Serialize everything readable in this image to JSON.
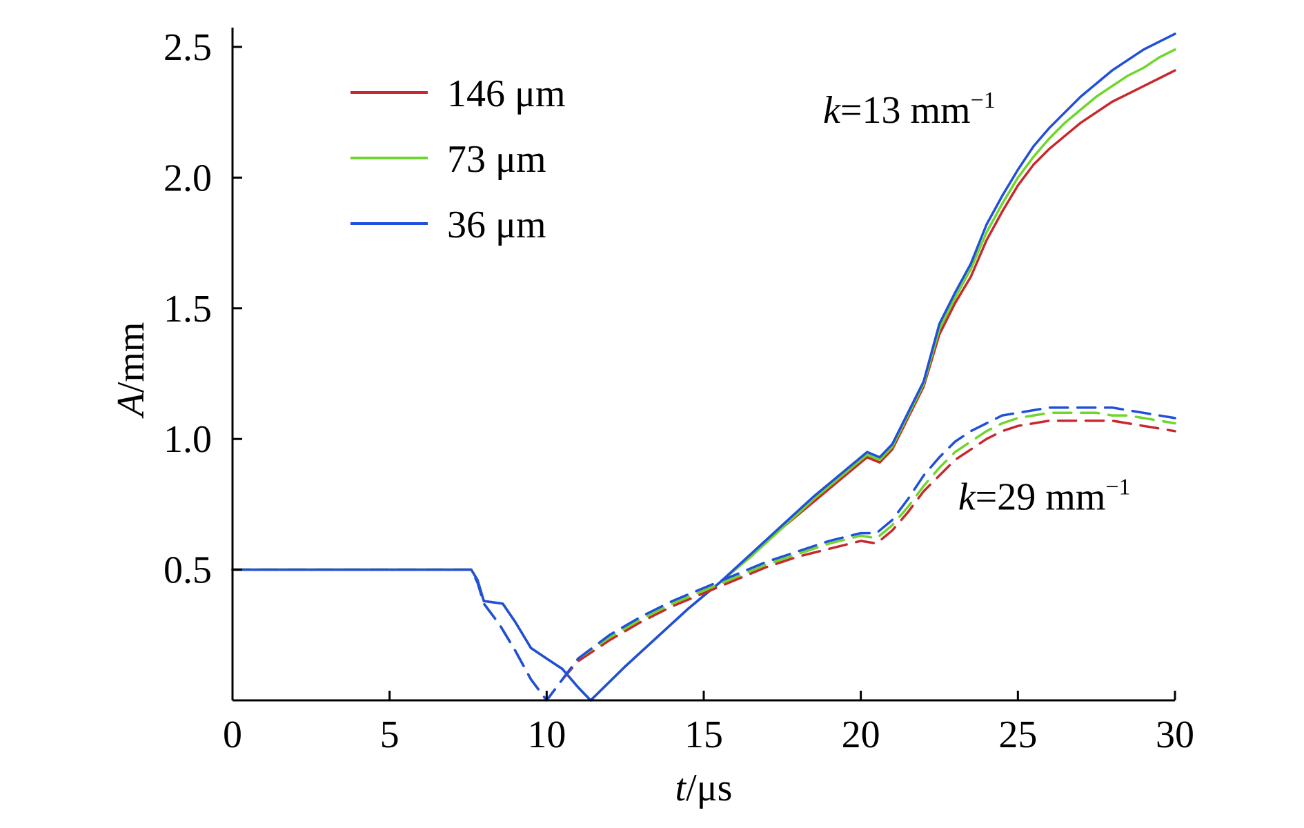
{
  "chart_data": {
    "type": "line",
    "title": "",
    "xlabel_italic": "t",
    "xlabel_rest": "/μs",
    "ylabel_italic": "A",
    "ylabel_rest": "/mm",
    "xlim": [
      0,
      30
    ],
    "ylim": [
      0,
      2.55
    ],
    "xticks": [
      0,
      5,
      10,
      15,
      20,
      25,
      30
    ],
    "xtick_labels": [
      "0",
      "5",
      "10",
      "15",
      "20",
      "25",
      "30"
    ],
    "yticks": [
      0.5,
      1.0,
      1.5,
      2.0,
      2.5
    ],
    "ytick_labels": [
      "0.5",
      "1.0",
      "1.5",
      "2.0",
      "2.5"
    ],
    "grid": false,
    "legend_position": "top-left",
    "legend": [
      {
        "label": "146 μm",
        "color": "#c8282d"
      },
      {
        "label": "73 μm",
        "color": "#6fd62a"
      },
      {
        "label": "36 μm",
        "color": "#1f4fdc"
      }
    ],
    "annotations": [
      {
        "italic": "k",
        "rest": "=13 mm",
        "sup": "−1",
        "at": [
          18.8,
          2.21
        ]
      },
      {
        "italic": "k",
        "rest": "=29 mm",
        "sup": "−1",
        "at": [
          23.1,
          0.73
        ]
      }
    ],
    "series": [
      {
        "name": "146 μm",
        "group": "k=13 mm⁻¹",
        "style": "solid",
        "color": "#c8282d",
        "x": [
          0,
          7.6,
          7.8,
          8.0,
          8.6,
          9.0,
          9.5,
          10.0,
          10.5,
          11.0,
          11.4,
          12.5,
          13.5,
          14.5,
          15.5,
          16.5,
          17.5,
          18.5,
          19.5,
          20.2,
          20.6,
          21.0,
          21.5,
          22.0,
          22.5,
          23.0,
          23.5,
          24.0,
          24.5,
          25.0,
          25.5,
          26.0,
          26.5,
          27.0,
          27.5,
          28.0,
          28.5,
          29.0,
          29.5,
          30.0
        ],
        "y": [
          0.5,
          0.5,
          0.46,
          0.38,
          0.37,
          0.3,
          0.2,
          0.16,
          0.12,
          0.05,
          0.0,
          0.13,
          0.24,
          0.35,
          0.45,
          0.55,
          0.66,
          0.76,
          0.86,
          0.93,
          0.91,
          0.96,
          1.08,
          1.2,
          1.4,
          1.52,
          1.62,
          1.76,
          1.87,
          1.97,
          2.05,
          2.11,
          2.16,
          2.21,
          2.25,
          2.29,
          2.32,
          2.35,
          2.38,
          2.41
        ]
      },
      {
        "name": "73 μm",
        "group": "k=13 mm⁻¹",
        "style": "solid",
        "color": "#6fd62a",
        "x": [
          0,
          7.6,
          7.8,
          8.0,
          8.6,
          9.0,
          9.5,
          10.0,
          10.5,
          11.0,
          11.4,
          12.5,
          13.5,
          14.5,
          15.5,
          16.5,
          17.5,
          18.5,
          19.5,
          20.2,
          20.6,
          21.0,
          21.5,
          22.0,
          22.5,
          23.0,
          23.5,
          24.0,
          24.5,
          25.0,
          25.5,
          26.0,
          26.5,
          27.0,
          27.5,
          28.0,
          28.5,
          29.0,
          29.5,
          30.0
        ],
        "y": [
          0.5,
          0.5,
          0.46,
          0.38,
          0.37,
          0.3,
          0.2,
          0.16,
          0.12,
          0.05,
          0.0,
          0.13,
          0.24,
          0.35,
          0.45,
          0.55,
          0.66,
          0.77,
          0.87,
          0.94,
          0.92,
          0.97,
          1.09,
          1.21,
          1.42,
          1.54,
          1.65,
          1.79,
          1.9,
          2.0,
          2.08,
          2.15,
          2.21,
          2.26,
          2.31,
          2.35,
          2.39,
          2.42,
          2.46,
          2.49
        ]
      },
      {
        "name": "36 μm",
        "group": "k=13 mm⁻¹",
        "style": "solid",
        "color": "#1f4fdc",
        "x": [
          0,
          7.6,
          7.8,
          8.0,
          8.6,
          9.0,
          9.5,
          10.0,
          10.5,
          11.0,
          11.4,
          12.5,
          13.5,
          14.5,
          15.5,
          16.5,
          17.5,
          18.5,
          19.5,
          20.2,
          20.6,
          21.0,
          21.5,
          22.0,
          22.5,
          23.0,
          23.5,
          24.0,
          24.5,
          25.0,
          25.5,
          26.0,
          26.5,
          27.0,
          27.5,
          28.0,
          28.5,
          29.0,
          29.5,
          30.0
        ],
        "y": [
          0.5,
          0.5,
          0.46,
          0.38,
          0.37,
          0.3,
          0.2,
          0.16,
          0.12,
          0.05,
          0.0,
          0.13,
          0.24,
          0.35,
          0.45,
          0.56,
          0.67,
          0.78,
          0.88,
          0.95,
          0.93,
          0.98,
          1.1,
          1.22,
          1.44,
          1.56,
          1.67,
          1.82,
          1.93,
          2.03,
          2.12,
          2.19,
          2.25,
          2.31,
          2.36,
          2.41,
          2.45,
          2.49,
          2.52,
          2.55
        ]
      },
      {
        "name": "146 μm",
        "group": "k=29 mm⁻¹",
        "style": "dashed",
        "color": "#c8282d",
        "x": [
          0,
          7.6,
          7.8,
          8.0,
          8.5,
          9.0,
          9.5,
          10.0,
          10.5,
          11.0,
          12.0,
          13.0,
          14.0,
          15.0,
          16.0,
          17.0,
          18.0,
          19.0,
          20.0,
          20.5,
          21.0,
          21.5,
          22.0,
          22.5,
          23.0,
          23.5,
          24.0,
          24.5,
          25.0,
          25.5,
          26.0,
          26.5,
          27.0,
          27.5,
          28.0,
          28.5,
          29.0,
          29.5,
          30.0
        ],
        "y": [
          0.5,
          0.5,
          0.45,
          0.37,
          0.29,
          0.19,
          0.08,
          0.0,
          0.08,
          0.15,
          0.23,
          0.3,
          0.36,
          0.41,
          0.46,
          0.51,
          0.55,
          0.58,
          0.61,
          0.6,
          0.65,
          0.72,
          0.8,
          0.86,
          0.92,
          0.96,
          1.0,
          1.03,
          1.05,
          1.06,
          1.07,
          1.07,
          1.07,
          1.07,
          1.07,
          1.06,
          1.05,
          1.04,
          1.03
        ]
      },
      {
        "name": "73 μm",
        "group": "k=29 mm⁻¹",
        "style": "dashed",
        "color": "#6fd62a",
        "x": [
          0,
          7.6,
          7.8,
          8.0,
          8.5,
          9.0,
          9.5,
          10.0,
          10.5,
          11.0,
          12.0,
          13.0,
          14.0,
          15.0,
          16.0,
          17.0,
          18.0,
          19.0,
          20.0,
          20.5,
          21.0,
          21.5,
          22.0,
          22.5,
          23.0,
          23.5,
          24.0,
          24.5,
          25.0,
          25.5,
          26.0,
          26.5,
          27.0,
          27.5,
          28.0,
          28.5,
          29.0,
          29.5,
          30.0
        ],
        "y": [
          0.5,
          0.5,
          0.45,
          0.37,
          0.29,
          0.19,
          0.08,
          0.0,
          0.08,
          0.16,
          0.24,
          0.31,
          0.37,
          0.42,
          0.47,
          0.52,
          0.56,
          0.6,
          0.63,
          0.62,
          0.67,
          0.74,
          0.82,
          0.89,
          0.95,
          0.99,
          1.03,
          1.06,
          1.08,
          1.09,
          1.1,
          1.1,
          1.1,
          1.1,
          1.09,
          1.09,
          1.08,
          1.07,
          1.06
        ]
      },
      {
        "name": "36 μm",
        "group": "k=29 mm⁻¹",
        "style": "dashed",
        "color": "#1f4fdc",
        "x": [
          0,
          7.6,
          7.8,
          8.0,
          8.5,
          9.0,
          9.5,
          10.0,
          10.5,
          11.0,
          12.0,
          13.0,
          14.0,
          15.0,
          16.0,
          17.0,
          18.0,
          19.0,
          20.0,
          20.5,
          21.0,
          21.5,
          22.0,
          22.5,
          23.0,
          23.5,
          24.0,
          24.5,
          25.0,
          25.5,
          26.0,
          26.5,
          27.0,
          27.5,
          28.0,
          28.5,
          29.0,
          29.5,
          30.0
        ],
        "y": [
          0.5,
          0.5,
          0.45,
          0.37,
          0.29,
          0.19,
          0.08,
          0.0,
          0.08,
          0.16,
          0.25,
          0.32,
          0.38,
          0.43,
          0.48,
          0.53,
          0.57,
          0.61,
          0.64,
          0.64,
          0.69,
          0.77,
          0.86,
          0.93,
          0.99,
          1.03,
          1.06,
          1.09,
          1.1,
          1.11,
          1.12,
          1.12,
          1.12,
          1.12,
          1.12,
          1.11,
          1.1,
          1.09,
          1.08
        ]
      }
    ]
  }
}
